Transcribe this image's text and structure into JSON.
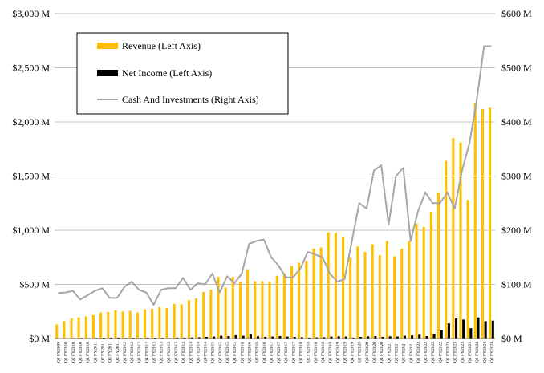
{
  "chart_data": {
    "type": "bar",
    "title": "",
    "xlabel": "",
    "ylabel": "",
    "y2label": "",
    "ylim": [
      0,
      3000
    ],
    "y2lim": [
      0,
      600
    ],
    "y_ticks": [
      "$0 M",
      "$500 M",
      "$1,000 M",
      "$1,500 M",
      "$2,000 M",
      "$2,500 M",
      "$3,000 M"
    ],
    "y2_ticks": [
      "$0 M",
      "$100 M",
      "$200 M",
      "$300 M",
      "$400 M",
      "$500 M",
      "$600 M"
    ],
    "grid": true,
    "legend_position": "top-left",
    "categories": [
      "Q4 FY2009",
      "Q1 FY2010",
      "Q2 FY2010",
      "Q3 FY2010",
      "Q4 FY2010",
      "Q1 FY2011",
      "Q2 FY2011",
      "Q3 FY2011",
      "Q4 FY2011",
      "Q1 FY2012",
      "Q2 FY2012",
      "Q3 FY2012",
      "Q4 FY2012",
      "Q1 FY2013",
      "Q2 FY2013",
      "Q3 FY2013",
      "Q4 FY2013",
      "Q1 FY2014",
      "Q2 FY2014",
      "Q3 FY2014",
      "Q4 FY2014",
      "Q1 FY2015",
      "Q2 FY2015",
      "Q3 FY2015",
      "Q4 FY2015",
      "Q1 FY2016",
      "Q2 FY2016",
      "Q3 FY2016",
      "Q4 FY2016",
      "Q1 FY2017",
      "Q2 FY2017",
      "Q3 FY2017",
      "Q4 FY2017",
      "Q1 FY2018",
      "Q2 FY2018",
      "Q3 FY2018",
      "Q4 FY2018",
      "Q1 FY2019",
      "Q2 FY2019",
      "Q3 FY2019",
      "Q4 FY2019",
      "Q1 FY2020",
      "Q2 FY2020",
      "Q3 FY2020",
      "Q4 FY2020",
      "Q1 FY2021",
      "Q2 FY2021",
      "Q3 FY2021",
      "Q4 FY2021",
      "Q1 FY2022",
      "Q2 FY2022",
      "Q3 FY2022",
      "Q4 FY2022",
      "Q1 FY2023",
      "Q2 FY2023",
      "Q3 FY2023",
      "Q4 FY2023",
      "Q1 FY2024",
      "Q2 FY2024",
      "Q3 FY2024"
    ],
    "series": [
      {
        "name": "Revenue (Left Axis)",
        "axis": "left",
        "kind": "bar",
        "color": "#FFC000",
        "values": [
          130,
          160,
          185,
          195,
          205,
          215,
          240,
          245,
          260,
          250,
          255,
          240,
          270,
          275,
          290,
          280,
          320,
          315,
          355,
          370,
          430,
          450,
          570,
          470,
          570,
          525,
          640,
          530,
          530,
          525,
          580,
          600,
          670,
          700,
          720,
          830,
          840,
          980,
          975,
          935,
          745,
          850,
          800,
          870,
          770,
          900,
          760,
          830,
          900,
          1060,
          1030,
          1170,
          1350,
          1640,
          1850,
          1810,
          1280,
          2180,
          2120,
          2130
        ]
      },
      {
        "name": "Net Income (Left Axis)",
        "axis": "left",
        "kind": "bar",
        "color": "#000000",
        "values": [
          3,
          4,
          5,
          6,
          5,
          6,
          7,
          8,
          8,
          6,
          7,
          6,
          8,
          7,
          7,
          5,
          9,
          8,
          10,
          11,
          15,
          18,
          25,
          22,
          30,
          25,
          40,
          20,
          15,
          18,
          22,
          18,
          15,
          12,
          8,
          10,
          12,
          18,
          20,
          18,
          8,
          15,
          20,
          22,
          15,
          20,
          18,
          25,
          28,
          35,
          22,
          45,
          75,
          140,
          185,
          175,
          95,
          195,
          160,
          165
        ]
      },
      {
        "name": "Cash And Investments (Right Axis)",
        "axis": "right",
        "kind": "line",
        "color": "#A6A6A6",
        "values": [
          84,
          85,
          88,
          72,
          80,
          88,
          93,
          75,
          75,
          95,
          105,
          90,
          85,
          62,
          90,
          93,
          93,
          112,
          90,
          102,
          100,
          120,
          85,
          115,
          102,
          120,
          175,
          180,
          183,
          150,
          135,
          113,
          113,
          130,
          160,
          155,
          150,
          120,
          105,
          110,
          180,
          250,
          240,
          310,
          320,
          210,
          300,
          315,
          180,
          235,
          270,
          250,
          250,
          270,
          240,
          310,
          360,
          440,
          540,
          540
        ]
      }
    ]
  }
}
